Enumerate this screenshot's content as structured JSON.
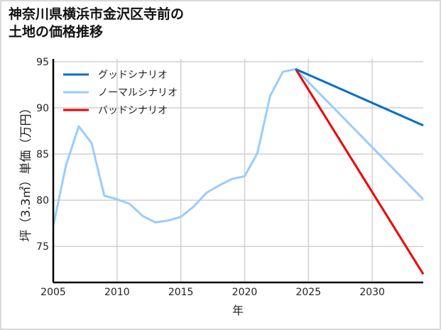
{
  "chart_data": {
    "type": "line",
    "title_lines": [
      "神奈川県横浜市金沢区寺前の",
      "土地の価格推移"
    ],
    "xlabel": "年",
    "ylabel": "坪（3.3㎡）単価（万円）",
    "xlim": [
      2005,
      2034
    ],
    "ylim": [
      71.1,
      95.3
    ],
    "xticks": [
      2005,
      2010,
      2015,
      2020,
      2025,
      2030
    ],
    "yticks": [
      75,
      80,
      85,
      90,
      95
    ],
    "grid": true,
    "legend_position": "top-left",
    "series": [
      {
        "name": "グッドシナリオ",
        "color": "#0070c8",
        "x": [
          2024,
          2034
        ],
        "y": [
          94.2,
          88.1
        ]
      },
      {
        "name": "ノーマルシナリオ",
        "color": "#99ccff",
        "x": [
          2005,
          2006,
          2007,
          2008,
          2009,
          2010,
          2011,
          2012,
          2013,
          2014,
          2015,
          2016,
          2017,
          2018,
          2019,
          2020,
          2021,
          2022,
          2023,
          2024,
          2034
        ],
        "y": [
          77.2,
          83.8,
          88.0,
          86.2,
          80.5,
          80.1,
          79.6,
          78.3,
          77.6,
          77.8,
          78.2,
          79.3,
          80.8,
          81.6,
          82.3,
          82.6,
          85.1,
          91.3,
          93.9,
          94.2,
          80.1
        ]
      },
      {
        "name": "バッドシナリオ",
        "color": "#ee0000",
        "x": [
          2024,
          2034
        ],
        "y": [
          94.2,
          72.0
        ]
      }
    ]
  }
}
